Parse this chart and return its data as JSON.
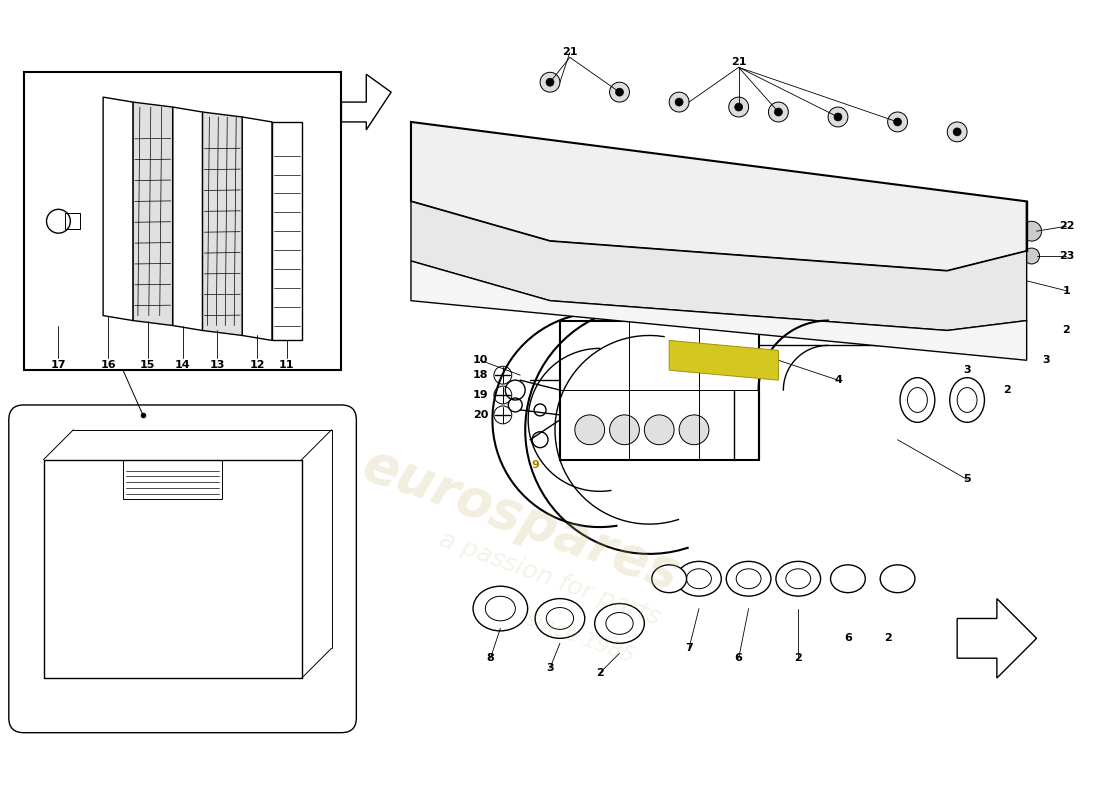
{
  "bg_color": "#ffffff",
  "wm1": "eurospares",
  "wm2": "a passion for parts",
  "wm3": "since 1985",
  "wm_color": "#c8b87a",
  "wm_alpha": 0.18,
  "fig_w": 11.0,
  "fig_h": 8.0,
  "dpi": 100
}
